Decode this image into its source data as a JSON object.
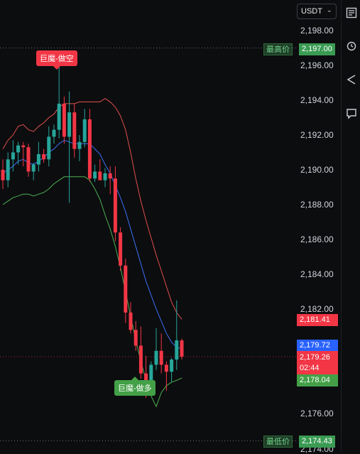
{
  "currency": "USDT",
  "colors": {
    "up": "#26a69a",
    "down": "#f23645",
    "ma": "#3b6ff5",
    "upper": "#e0514d",
    "lower": "#4caf50"
  },
  "price_axis": {
    "ticks": [
      "2,198.00",
      "2,196.00",
      "2,194.00",
      "2,192.00",
      "2,190.00",
      "2,188.00",
      "2,186.00",
      "2,184.00",
      "2,182.00",
      "2,176.00",
      "2,174.00"
    ]
  },
  "tags": {
    "high_label": "最高价",
    "high_value": "2,197.00",
    "low_label": "最低价",
    "low_value": "2,174.43",
    "upper_band": "2,181.41",
    "ma_value": "2,179.72",
    "last_price": "2,179.26",
    "countdown": "02:44",
    "lower_band": "2,178.04"
  },
  "signals": {
    "sell": "巨魔-做空",
    "buy": "巨魔-做多"
  },
  "toolbar": {
    "icons": [
      "indicator-icon",
      "alarm-icon",
      "drawing-icon",
      "comment-icon"
    ]
  },
  "chart_data": {
    "type": "candlestick",
    "ylim": [
      2174.0,
      2198.5
    ],
    "candles": [
      {
        "o": 2190.0,
        "h": 2190.6,
        "l": 2188.9,
        "c": 2189.4
      },
      {
        "o": 2189.4,
        "h": 2191.0,
        "l": 2189.0,
        "c": 2190.6
      },
      {
        "o": 2190.6,
        "h": 2191.7,
        "l": 2189.9,
        "c": 2191.0
      },
      {
        "o": 2191.0,
        "h": 2191.6,
        "l": 2190.3,
        "c": 2191.4
      },
      {
        "o": 2191.4,
        "h": 2191.6,
        "l": 2190.2,
        "c": 2191.3
      },
      {
        "o": 2191.3,
        "h": 2191.5,
        "l": 2189.6,
        "c": 2189.9
      },
      {
        "o": 2189.9,
        "h": 2190.4,
        "l": 2189.4,
        "c": 2190.3
      },
      {
        "o": 2190.3,
        "h": 2191.6,
        "l": 2189.9,
        "c": 2190.9
      },
      {
        "o": 2190.9,
        "h": 2191.2,
        "l": 2190.4,
        "c": 2190.6
      },
      {
        "o": 2190.6,
        "h": 2192.5,
        "l": 2190.2,
        "c": 2191.9
      },
      {
        "o": 2191.9,
        "h": 2192.6,
        "l": 2191.5,
        "c": 2192.3
      },
      {
        "o": 2192.3,
        "h": 2196.3,
        "l": 2191.8,
        "c": 2193.8
      },
      {
        "o": 2193.8,
        "h": 2194.2,
        "l": 2191.5,
        "c": 2191.9
      },
      {
        "o": 2191.9,
        "h": 2194.5,
        "l": 2188.1,
        "c": 2193.3
      },
      {
        "o": 2193.3,
        "h": 2193.8,
        "l": 2190.7,
        "c": 2191.2
      },
      {
        "o": 2191.2,
        "h": 2192.0,
        "l": 2190.5,
        "c": 2191.6
      },
      {
        "o": 2191.6,
        "h": 2193.5,
        "l": 2191.3,
        "c": 2192.9
      },
      {
        "o": 2192.9,
        "h": 2193.5,
        "l": 2189.3,
        "c": 2189.5
      },
      {
        "o": 2189.5,
        "h": 2190.3,
        "l": 2189.3,
        "c": 2189.9
      },
      {
        "o": 2189.9,
        "h": 2190.6,
        "l": 2189.4,
        "c": 2189.4
      },
      {
        "o": 2189.4,
        "h": 2190.1,
        "l": 2189.0,
        "c": 2189.8
      },
      {
        "o": 2189.8,
        "h": 2190.2,
        "l": 2188.6,
        "c": 2189.5
      },
      {
        "o": 2189.5,
        "h": 2190.2,
        "l": 2185.9,
        "c": 2186.4
      },
      {
        "o": 2186.4,
        "h": 2186.7,
        "l": 2184.2,
        "c": 2184.5
      },
      {
        "o": 2184.5,
        "h": 2184.9,
        "l": 2181.2,
        "c": 2181.8
      },
      {
        "o": 2181.8,
        "h": 2182.4,
        "l": 2180.6,
        "c": 2180.8
      },
      {
        "o": 2180.8,
        "h": 2181.3,
        "l": 2179.6,
        "c": 2179.9
      },
      {
        "o": 2179.9,
        "h": 2181.0,
        "l": 2178.0,
        "c": 2178.3
      },
      {
        "o": 2178.3,
        "h": 2179.3,
        "l": 2176.9,
        "c": 2177.5
      },
      {
        "o": 2177.5,
        "h": 2179.0,
        "l": 2177.3,
        "c": 2178.8
      },
      {
        "o": 2178.8,
        "h": 2180.9,
        "l": 2178.5,
        "c": 2179.6
      },
      {
        "o": 2179.6,
        "h": 2180.6,
        "l": 2178.3,
        "c": 2178.8
      },
      {
        "o": 2178.8,
        "h": 2179.0,
        "l": 2177.3,
        "c": 2178.4
      },
      {
        "o": 2178.4,
        "h": 2179.2,
        "l": 2177.8,
        "c": 2179.1
      },
      {
        "o": 2179.1,
        "h": 2182.5,
        "l": 2178.5,
        "c": 2180.2
      },
      {
        "o": 2180.2,
        "h": 2180.3,
        "l": 2179.1,
        "c": 2179.26
      }
    ],
    "upper_band": [
      2191.2,
      2191.7,
      2192.0,
      2192.5,
      2192.6,
      2192.3,
      2192.2,
      2192.5,
      2192.7,
      2193.0,
      2193.2,
      2193.6,
      2193.8,
      2193.8,
      2193.8,
      2193.9,
      2193.9,
      2193.9,
      2193.9,
      2193.9,
      2194.1,
      2193.9,
      2193.6,
      2193.1,
      2192.3,
      2191.0,
      2189.5,
      2188.2,
      2187.1,
      2186.1,
      2185.1,
      2184.2,
      2183.3,
      2182.4,
      2181.8,
      2181.41
    ],
    "middle_band": [
      2189.8,
      2190.0,
      2190.2,
      2190.5,
      2190.6,
      2190.4,
      2190.3,
      2190.5,
      2190.7,
      2191.0,
      2191.2,
      2191.5,
      2191.7,
      2191.6,
      2191.5,
      2191.5,
      2191.5,
      2191.5,
      2191.2,
      2190.9,
      2190.3,
      2189.8,
      2189.1,
      2188.4,
      2187.6,
      2186.6,
      2185.6,
      2184.6,
      2183.6,
      2182.8,
      2182.0,
      2181.3,
      2180.6,
      2180.1,
      2179.8,
      2179.72
    ],
    "lower_band": [
      2188.0,
      2188.2,
      2188.4,
      2188.5,
      2188.6,
      2188.6,
      2188.5,
      2188.6,
      2188.7,
      2188.9,
      2189.2,
      2189.4,
      2189.6,
      2189.6,
      2189.6,
      2189.6,
      2189.6,
      2189.4,
      2188.9,
      2188.3,
      2187.4,
      2186.6,
      2185.6,
      2184.4,
      2183.0,
      2181.6,
      2180.2,
      2179.0,
      2177.9,
      2177.0,
      2176.4,
      2177.2,
      2177.6,
      2177.8,
      2177.9,
      2178.04
    ],
    "high_marker": 2197.0,
    "low_marker": 2174.43,
    "last_price_line": 2179.26
  }
}
